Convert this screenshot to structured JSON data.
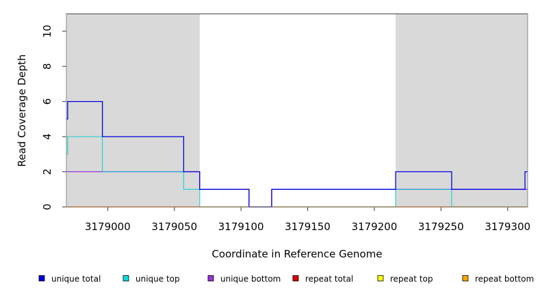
{
  "chart_data": {
    "type": "line",
    "xlabel": "Coordinate in Reference Genome",
    "ylabel": "Read Coverage Depth",
    "xlim": [
      3178969,
      3179315
    ],
    "ylim": [
      0,
      11
    ],
    "x_ticks": [
      3179000,
      3179050,
      3179100,
      3179150,
      3179200,
      3179250,
      3179300
    ],
    "x_tick_labels": [
      "3179000",
      "3179050",
      "3179100",
      "3179150",
      "3179200",
      "3179250",
      "3179300"
    ],
    "y_ticks": [
      0,
      2,
      4,
      6,
      8,
      10
    ],
    "y_tick_labels": [
      "0",
      "2",
      "4",
      "6",
      "8",
      "10"
    ],
    "shaded_regions": [
      {
        "x_start": 3178969,
        "x_end": 3179069,
        "color": "#d9d9d9"
      },
      {
        "x_start": 3179216,
        "x_end": 3179315,
        "color": "#d9d9d9"
      }
    ],
    "series": [
      {
        "name": "unique total",
        "color": "#0000dd",
        "x": [
          3178969,
          3178970,
          3178970,
          3178996,
          3178996,
          3179057,
          3179057,
          3179069,
          3179069,
          3179106,
          3179106,
          3179123,
          3179123,
          3179216,
          3179216,
          3179258,
          3179258,
          3179313,
          3179313,
          3179315
        ],
        "y": [
          5,
          5,
          6,
          6,
          4,
          4,
          2,
          2,
          1,
          1,
          0,
          0,
          1,
          1,
          2,
          2,
          1,
          1,
          2,
          2
        ]
      },
      {
        "name": "unique top",
        "color": "#00cccc",
        "x": [
          3178969,
          3178970,
          3178970,
          3178996,
          3178996,
          3179057,
          3179057,
          3179069,
          3179069,
          3179216,
          3179216,
          3179258,
          3179258,
          3179315
        ],
        "y": [
          3,
          3,
          4,
          4,
          2,
          2,
          1,
          1,
          0,
          0,
          1,
          1,
          0,
          0
        ]
      },
      {
        "name": "unique bottom",
        "color": "#9933dd",
        "x": [
          3178969,
          3179069,
          3179069,
          3179106,
          3179106,
          3179123,
          3179123,
          3179216,
          3179216,
          3179315
        ],
        "y": [
          2,
          2,
          1,
          1,
          0,
          0,
          1,
          1,
          1,
          1
        ]
      },
      {
        "name": "repeat total",
        "color": "#dd0000",
        "x": [
          3178969,
          3179315
        ],
        "y": [
          0,
          0
        ]
      },
      {
        "name": "repeat top",
        "color": "#e6e600",
        "x": [
          3178969,
          3179315
        ],
        "y": [
          0,
          0
        ]
      },
      {
        "name": "repeat bottom",
        "color": "#ffa500",
        "x": [
          3178969,
          3179315
        ],
        "y": [
          0,
          0
        ]
      }
    ],
    "legend_position": "bottom",
    "legend": [
      {
        "label": "unique total",
        "color": "#0000dd"
      },
      {
        "label": "unique top",
        "color": "#00dddd"
      },
      {
        "label": "unique bottom",
        "color": "#9933dd"
      },
      {
        "label": "repeat total",
        "color": "#dd0000"
      },
      {
        "label": "repeat top",
        "color": "#ffff00"
      },
      {
        "label": "repeat bottom",
        "color": "#ffa500"
      }
    ]
  }
}
